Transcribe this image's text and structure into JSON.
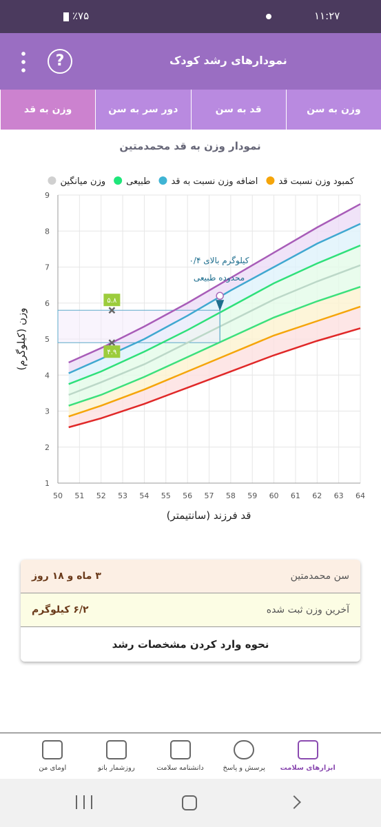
{
  "status_bar": {
    "time": "۱۱:۲۷",
    "battery": "٪۷۵"
  },
  "header": {
    "title": "نمودارهای رشد کودک",
    "help": "?"
  },
  "tabs": [
    "وزن به سن",
    "قد به سن",
    "دور سر به سن",
    "وزن به قد"
  ],
  "chart_data": {
    "type": "line",
    "title": "نمودار وزن به قد محمدمتین",
    "x_label": "قد فرزند (سانتیمتر)",
    "y_label": "وزن (کیلوگرم)",
    "legend": [
      {
        "name": "کمبود وزن نسبت قد",
        "color": "#f5a50a"
      },
      {
        "name": "اضافه وزن نسبت به قد",
        "color": "#3fb4d4"
      },
      {
        "name": "طبیعی",
        "color": "#1ee67a"
      },
      {
        "name": "وزن میانگین",
        "color": "#d0d0d0"
      }
    ],
    "x": [
      50.5,
      52,
      54,
      56,
      58,
      60,
      62,
      64
    ],
    "series": [
      {
        "color": "#a85cb8",
        "values": [
          4.35,
          4.75,
          5.35,
          6.0,
          6.7,
          7.4,
          8.1,
          8.75
        ]
      },
      {
        "color": "#3fa8d0",
        "values": [
          4.05,
          4.45,
          5.0,
          5.65,
          6.35,
          7.0,
          7.65,
          8.2
        ]
      },
      {
        "color": "#2fe07a",
        "values": [
          3.75,
          4.1,
          4.65,
          5.25,
          5.9,
          6.55,
          7.1,
          7.6
        ]
      },
      {
        "color": "#bcd8c8",
        "values": [
          3.45,
          3.8,
          4.3,
          4.9,
          5.5,
          6.1,
          6.6,
          7.05
        ]
      },
      {
        "color": "#3ce07c",
        "values": [
          3.15,
          3.45,
          3.95,
          4.5,
          5.05,
          5.6,
          6.05,
          6.45
        ]
      },
      {
        "color": "#f5a50a",
        "values": [
          2.85,
          3.15,
          3.6,
          4.1,
          4.6,
          5.1,
          5.5,
          5.9
        ]
      },
      {
        "color": "#e02828",
        "values": [
          2.55,
          2.8,
          3.2,
          3.65,
          4.1,
          4.55,
          4.95,
          5.3
        ]
      }
    ],
    "band_colors": [
      "#ecdcf6",
      "#dff3fb",
      "#e3fbe9",
      "#e3fbe9",
      "#fdf2cf",
      "#fde0e0"
    ],
    "points": {
      "x": [
        52.5,
        52.5
      ],
      "values": [
        5.8,
        4.9
      ],
      "value_labels": [
        "۵.۸",
        "۴.۹"
      ],
      "color": "#9ccc3c"
    },
    "annotation": {
      "x": 57.5,
      "value": 6.2,
      "lines": [
        "۰/۴ کیلوگرم بالای",
        "محدوده طبیعی"
      ]
    },
    "xlim": [
      50,
      64
    ],
    "ylim": [
      1,
      9
    ],
    "xticks": [
      50,
      51,
      52,
      53,
      54,
      55,
      56,
      57,
      58,
      59,
      60,
      61,
      62,
      63,
      64
    ],
    "yticks": [
      1,
      2,
      3,
      4,
      5,
      6,
      7,
      8,
      9
    ],
    "grid": true
  },
  "info": {
    "rows": [
      {
        "label": "سن محمدمتین",
        "value": "۳ ماه و ۱۸ روز"
      },
      {
        "label": "آخرین وزن ثبت شده",
        "value": "۶/۲ کیلوگرم"
      }
    ],
    "button": "نحوه وارد کردن مشخصات رشد"
  },
  "nav": [
    "ابزارهای سلامت",
    "پرسش و پاسخ",
    "دانشنامه سلامت",
    "روزشمار بانو",
    "اومای من"
  ]
}
